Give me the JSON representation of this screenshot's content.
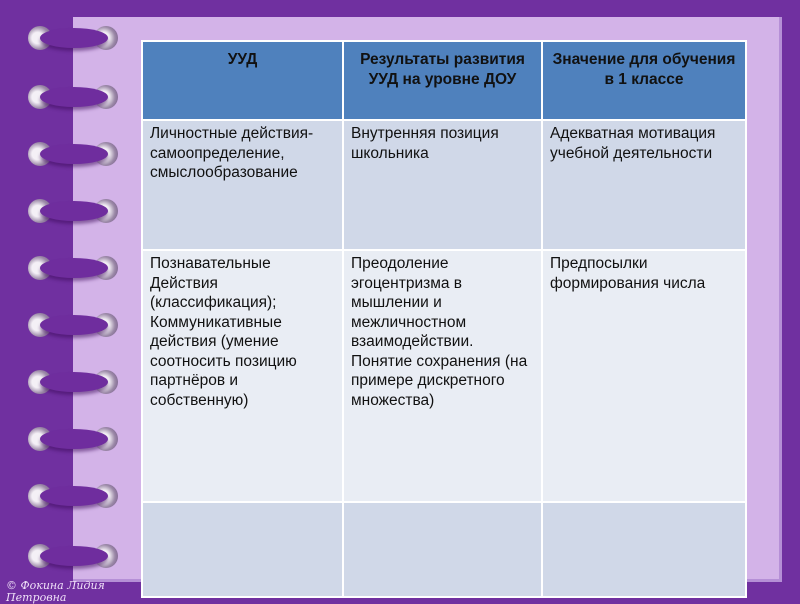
{
  "table": {
    "headers": [
      "УУД",
      "Результаты развития УУД на уровне ДОУ",
      "Значение для обучения в 1 классе"
    ],
    "rows": [
      [
        "Личностные действия-самоопределение, смыслообразование",
        "Внутренняя позиция школьника",
        "Адекватная мотивация учебной деятельности"
      ],
      [
        "Познавательные Действия (классификация); Коммуникативные действия (умение соотносить позицию партнёров и собственную)",
        "Преодоление эгоцентризма в мышлении и межличностном взаимодействии. Понятие сохранения (на примере дискретного множества)",
        "Предпосылки формирования числа"
      ],
      [
        "",
        "",
        ""
      ]
    ]
  },
  "copyright": "© Фокина Лидия Петровна",
  "colors": {
    "background": "#7030a0",
    "panel": "#d3b3e8",
    "header": "#4f81bd",
    "row_dark": "#d0d8e8",
    "row_light": "#e9edf4"
  }
}
